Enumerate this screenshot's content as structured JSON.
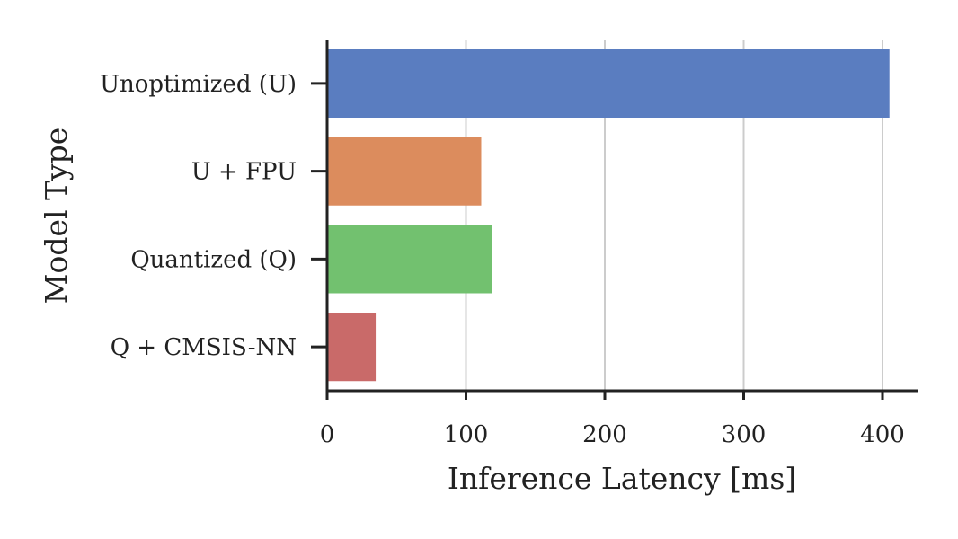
{
  "chart_data": {
    "type": "bar",
    "orientation": "horizontal",
    "categories": [
      "Unoptimized (U)",
      "U + FPU",
      "Quantized (Q)",
      "Q + CMSIS-NN"
    ],
    "values": [
      405,
      111,
      119,
      35
    ],
    "colors": [
      "#5a7dc0",
      "#dc8c5d",
      "#72c16f",
      "#c96a69"
    ],
    "xlabel": "Inference Latency [ms]",
    "ylabel": "Model Type",
    "xlim": [
      0,
      428
    ],
    "xticks": [
      0,
      100,
      200,
      300,
      400
    ],
    "xtick_labels": [
      "0",
      "100",
      "200",
      "300",
      "400"
    ],
    "grid": "vertical",
    "legend": "none"
  }
}
